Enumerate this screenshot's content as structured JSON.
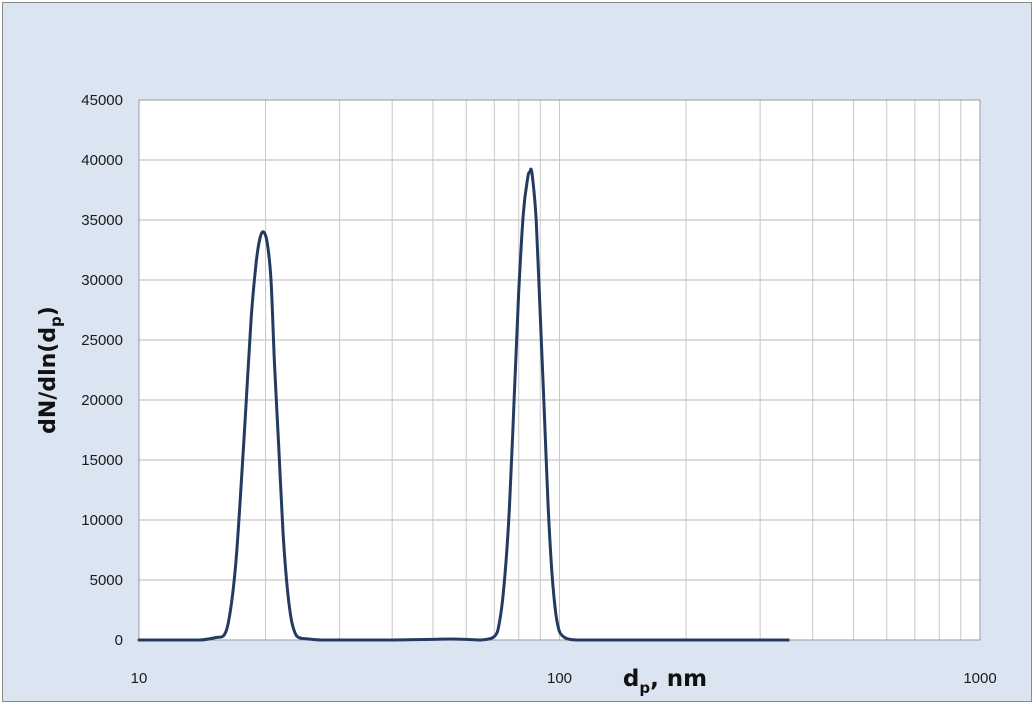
{
  "chart_data": {
    "type": "line",
    "title": "",
    "xlabel": {
      "main": "d",
      "sub": "p",
      "rest": ", nm"
    },
    "ylabel": {
      "prefix": "dN/dln(d",
      "sub": "p",
      "suffix": ")"
    },
    "x_scale": "log",
    "xlim": [
      10,
      1000
    ],
    "ylim": [
      0,
      45000
    ],
    "x_ticks": [
      "10",
      "100",
      "1000"
    ],
    "y_ticks": [
      "0",
      "5000",
      "10000",
      "15000",
      "20000",
      "25000",
      "30000",
      "35000",
      "40000",
      "45000"
    ],
    "grid": true,
    "legend": "none",
    "series": [
      {
        "color": "#243b61",
        "x": [
          10,
          12,
          14,
          15.2,
          16,
          16.5,
          17,
          17.5,
          18,
          18.5,
          19,
          19.4,
          19.8,
          20.2,
          20.6,
          21,
          21.5,
          22,
          22.5,
          23,
          23.5,
          24,
          25,
          27,
          30,
          40,
          50,
          55,
          60,
          65,
          70,
          72,
          74,
          76,
          78,
          80,
          82,
          84,
          85,
          86,
          88,
          90,
          92,
          94,
          96,
          98,
          100,
          103,
          106,
          110,
          120,
          150,
          200,
          300,
          350
        ],
        "y": [
          0,
          0,
          0,
          200,
          500,
          2500,
          6500,
          13000,
          20000,
          27000,
          31500,
          33500,
          34000,
          33000,
          30000,
          23000,
          16000,
          9000,
          4500,
          1800,
          600,
          200,
          100,
          0,
          0,
          0,
          50,
          80,
          50,
          0,
          300,
          1500,
          5000,
          11000,
          20000,
          29000,
          35500,
          38500,
          39000,
          38900,
          35000,
          27000,
          19000,
          11000,
          5500,
          2200,
          700,
          200,
          50,
          0,
          0,
          0,
          0,
          0,
          0
        ]
      }
    ]
  }
}
